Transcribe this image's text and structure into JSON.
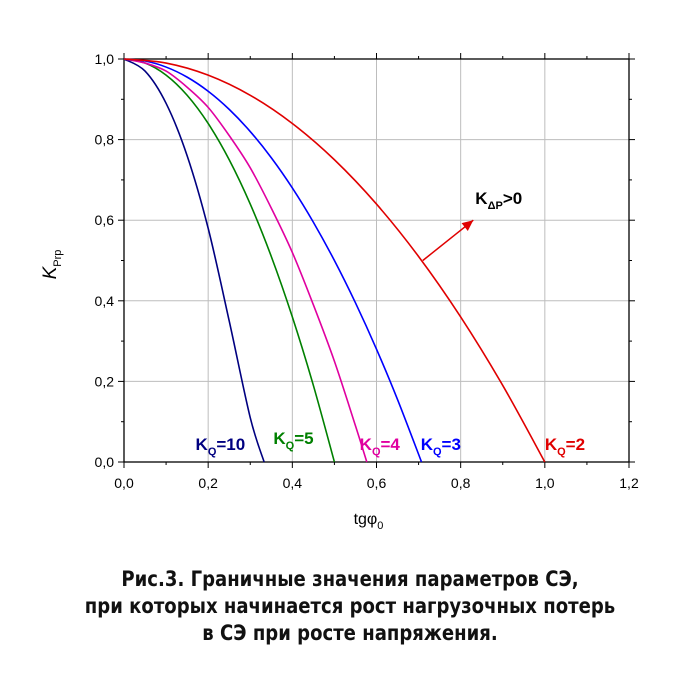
{
  "chart_data": {
    "type": "line",
    "xlabel": {
      "main": "tgφ",
      "sub": "0"
    },
    "ylabel": {
      "main": "K",
      "sub": "Prp"
    },
    "xlim": [
      0,
      1.2
    ],
    "ylim": [
      0,
      1.0
    ],
    "xticks": [
      "0,0",
      "0,2",
      "0,4",
      "0,6",
      "0,8",
      "1,0",
      "1,2"
    ],
    "yticks": [
      "0,0",
      "0,2",
      "0,4",
      "0,6",
      "0,8",
      "1,0"
    ],
    "grid": true,
    "series": [
      {
        "name": "KQ=10",
        "label_main": "K",
        "label_sub": "Q",
        "label_tail": "=10",
        "color": "#000080",
        "x": [
          0,
          0.05,
          0.1,
          0.15,
          0.2,
          0.25,
          0.3,
          0.333
        ],
        "y": [
          1.0,
          0.97,
          0.89,
          0.76,
          0.58,
          0.35,
          0.11,
          0.0
        ]
      },
      {
        "name": "KQ=5",
        "label_main": "K",
        "label_sub": "Q",
        "label_tail": "=5",
        "color": "#008000",
        "x": [
          0,
          0.05,
          0.1,
          0.15,
          0.2,
          0.25,
          0.3,
          0.35,
          0.4,
          0.45,
          0.5
        ],
        "y": [
          1.0,
          0.99,
          0.96,
          0.91,
          0.84,
          0.75,
          0.64,
          0.51,
          0.36,
          0.19,
          0.0
        ]
      },
      {
        "name": "KQ=4",
        "label_main": "K",
        "label_sub": "Q",
        "label_tail": "=4",
        "color": "#e000a0",
        "x": [
          0,
          0.05,
          0.1,
          0.15,
          0.2,
          0.25,
          0.3,
          0.35,
          0.4,
          0.45,
          0.5,
          0.55,
          0.577
        ],
        "y": [
          1.0,
          0.99,
          0.97,
          0.93,
          0.88,
          0.81,
          0.73,
          0.63,
          0.52,
          0.39,
          0.25,
          0.09,
          0.0
        ]
      },
      {
        "name": "KQ=3",
        "label_main": "K",
        "label_sub": "Q",
        "label_tail": "=3",
        "color": "#0000ff",
        "x": [
          0,
          0.05,
          0.1,
          0.15,
          0.2,
          0.25,
          0.3,
          0.35,
          0.4,
          0.45,
          0.5,
          0.55,
          0.6,
          0.65,
          0.707
        ],
        "y": [
          1.0,
          0.995,
          0.98,
          0.955,
          0.92,
          0.875,
          0.82,
          0.755,
          0.68,
          0.595,
          0.5,
          0.395,
          0.28,
          0.155,
          0.0
        ]
      },
      {
        "name": "KQ=2",
        "label_main": "K",
        "label_sub": "Q",
        "label_tail": "=2",
        "color": "#e00000",
        "x": [
          0,
          0.1,
          0.2,
          0.3,
          0.4,
          0.5,
          0.6,
          0.7,
          0.8,
          0.9,
          1.0
        ],
        "y": [
          1.0,
          0.99,
          0.96,
          0.91,
          0.84,
          0.75,
          0.64,
          0.51,
          0.36,
          0.19,
          0.0
        ]
      }
    ],
    "annotation": {
      "main": "K",
      "sub": "ΔP",
      "tail": ">0",
      "color": "#000000",
      "arrow_color": "#e00000",
      "arrow_from": [
        0.71,
        0.5
      ],
      "arrow_to": [
        0.83,
        0.6
      ]
    }
  },
  "caption": [
    "Рис.3. Граничные значения параметров СЭ,",
    "при которых начинается рост нагрузочных потерь",
    "в СЭ при росте напряжения."
  ]
}
